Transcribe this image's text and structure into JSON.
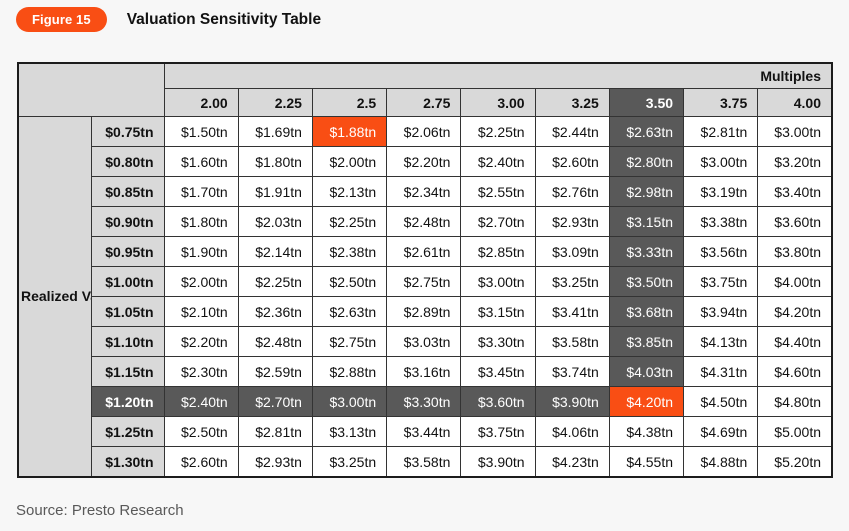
{
  "figure": {
    "badge_label": "Figure 15",
    "title": "Valuation Sensitivity Table"
  },
  "chart_data": {
    "type": "table",
    "title": "Valuation Sensitivity Table",
    "column_group_label": "Multiples",
    "row_group_label": "Realized Value",
    "columns": [
      "2.00",
      "2.25",
      "2.5",
      "2.75",
      "3.00",
      "3.25",
      "3.50",
      "3.75",
      "4.00"
    ],
    "rows": [
      {
        "label": "$0.75tn",
        "values": [
          "$1.50tn",
          "$1.69tn",
          "$1.88tn",
          "$2.06tn",
          "$2.25tn",
          "$2.44tn",
          "$2.63tn",
          "$2.81tn",
          "$3.00tn"
        ]
      },
      {
        "label": "$0.80tn",
        "values": [
          "$1.60tn",
          "$1.80tn",
          "$2.00tn",
          "$2.20tn",
          "$2.40tn",
          "$2.60tn",
          "$2.80tn",
          "$3.00tn",
          "$3.20tn"
        ]
      },
      {
        "label": "$0.85tn",
        "values": [
          "$1.70tn",
          "$1.91tn",
          "$2.13tn",
          "$2.34tn",
          "$2.55tn",
          "$2.76tn",
          "$2.98tn",
          "$3.19tn",
          "$3.40tn"
        ]
      },
      {
        "label": "$0.90tn",
        "values": [
          "$1.80tn",
          "$2.03tn",
          "$2.25tn",
          "$2.48tn",
          "$2.70tn",
          "$2.93tn",
          "$3.15tn",
          "$3.38tn",
          "$3.60tn"
        ]
      },
      {
        "label": "$0.95tn",
        "values": [
          "$1.90tn",
          "$2.14tn",
          "$2.38tn",
          "$2.61tn",
          "$2.85tn",
          "$3.09tn",
          "$3.33tn",
          "$3.56tn",
          "$3.80tn"
        ]
      },
      {
        "label": "$1.00tn",
        "values": [
          "$2.00tn",
          "$2.25tn",
          "$2.50tn",
          "$2.75tn",
          "$3.00tn",
          "$3.25tn",
          "$3.50tn",
          "$3.75tn",
          "$4.00tn"
        ]
      },
      {
        "label": "$1.05tn",
        "values": [
          "$2.10tn",
          "$2.36tn",
          "$2.63tn",
          "$2.89tn",
          "$3.15tn",
          "$3.41tn",
          "$3.68tn",
          "$3.94tn",
          "$4.20tn"
        ]
      },
      {
        "label": "$1.10tn",
        "values": [
          "$2.20tn",
          "$2.48tn",
          "$2.75tn",
          "$3.03tn",
          "$3.30tn",
          "$3.58tn",
          "$3.85tn",
          "$4.13tn",
          "$4.40tn"
        ]
      },
      {
        "label": "$1.15tn",
        "values": [
          "$2.30tn",
          "$2.59tn",
          "$2.88tn",
          "$3.16tn",
          "$3.45tn",
          "$3.74tn",
          "$4.03tn",
          "$4.31tn",
          "$4.60tn"
        ]
      },
      {
        "label": "$1.20tn",
        "values": [
          "$2.40tn",
          "$2.70tn",
          "$3.00tn",
          "$3.30tn",
          "$3.60tn",
          "$3.90tn",
          "$4.20tn",
          "$4.50tn",
          "$4.80tn"
        ]
      },
      {
        "label": "$1.25tn",
        "values": [
          "$2.50tn",
          "$2.81tn",
          "$3.13tn",
          "$3.44tn",
          "$3.75tn",
          "$4.06tn",
          "$4.38tn",
          "$4.69tn",
          "$5.00tn"
        ]
      },
      {
        "label": "$1.30tn",
        "values": [
          "$2.60tn",
          "$2.93tn",
          "$3.25tn",
          "$3.58tn",
          "$3.90tn",
          "$4.23tn",
          "$4.55tn",
          "$4.88tn",
          "$5.20tn"
        ]
      }
    ],
    "highlights": {
      "dark_column_index": 6,
      "dark_row_index": 9,
      "orange_cells": [
        [
          0,
          2
        ],
        [
          9,
          6
        ]
      ]
    },
    "layout": {
      "grid": "on",
      "row_label_align": "right",
      "value_align": "right"
    }
  },
  "colors": {
    "accent_orange": "#f94e14",
    "dark_gray": "#595959",
    "header_gray": "#d9d9d9",
    "page_bg": "#f7f7f7",
    "border": "#333333",
    "source_text": "#595959"
  },
  "source": "Source: Presto Research"
}
